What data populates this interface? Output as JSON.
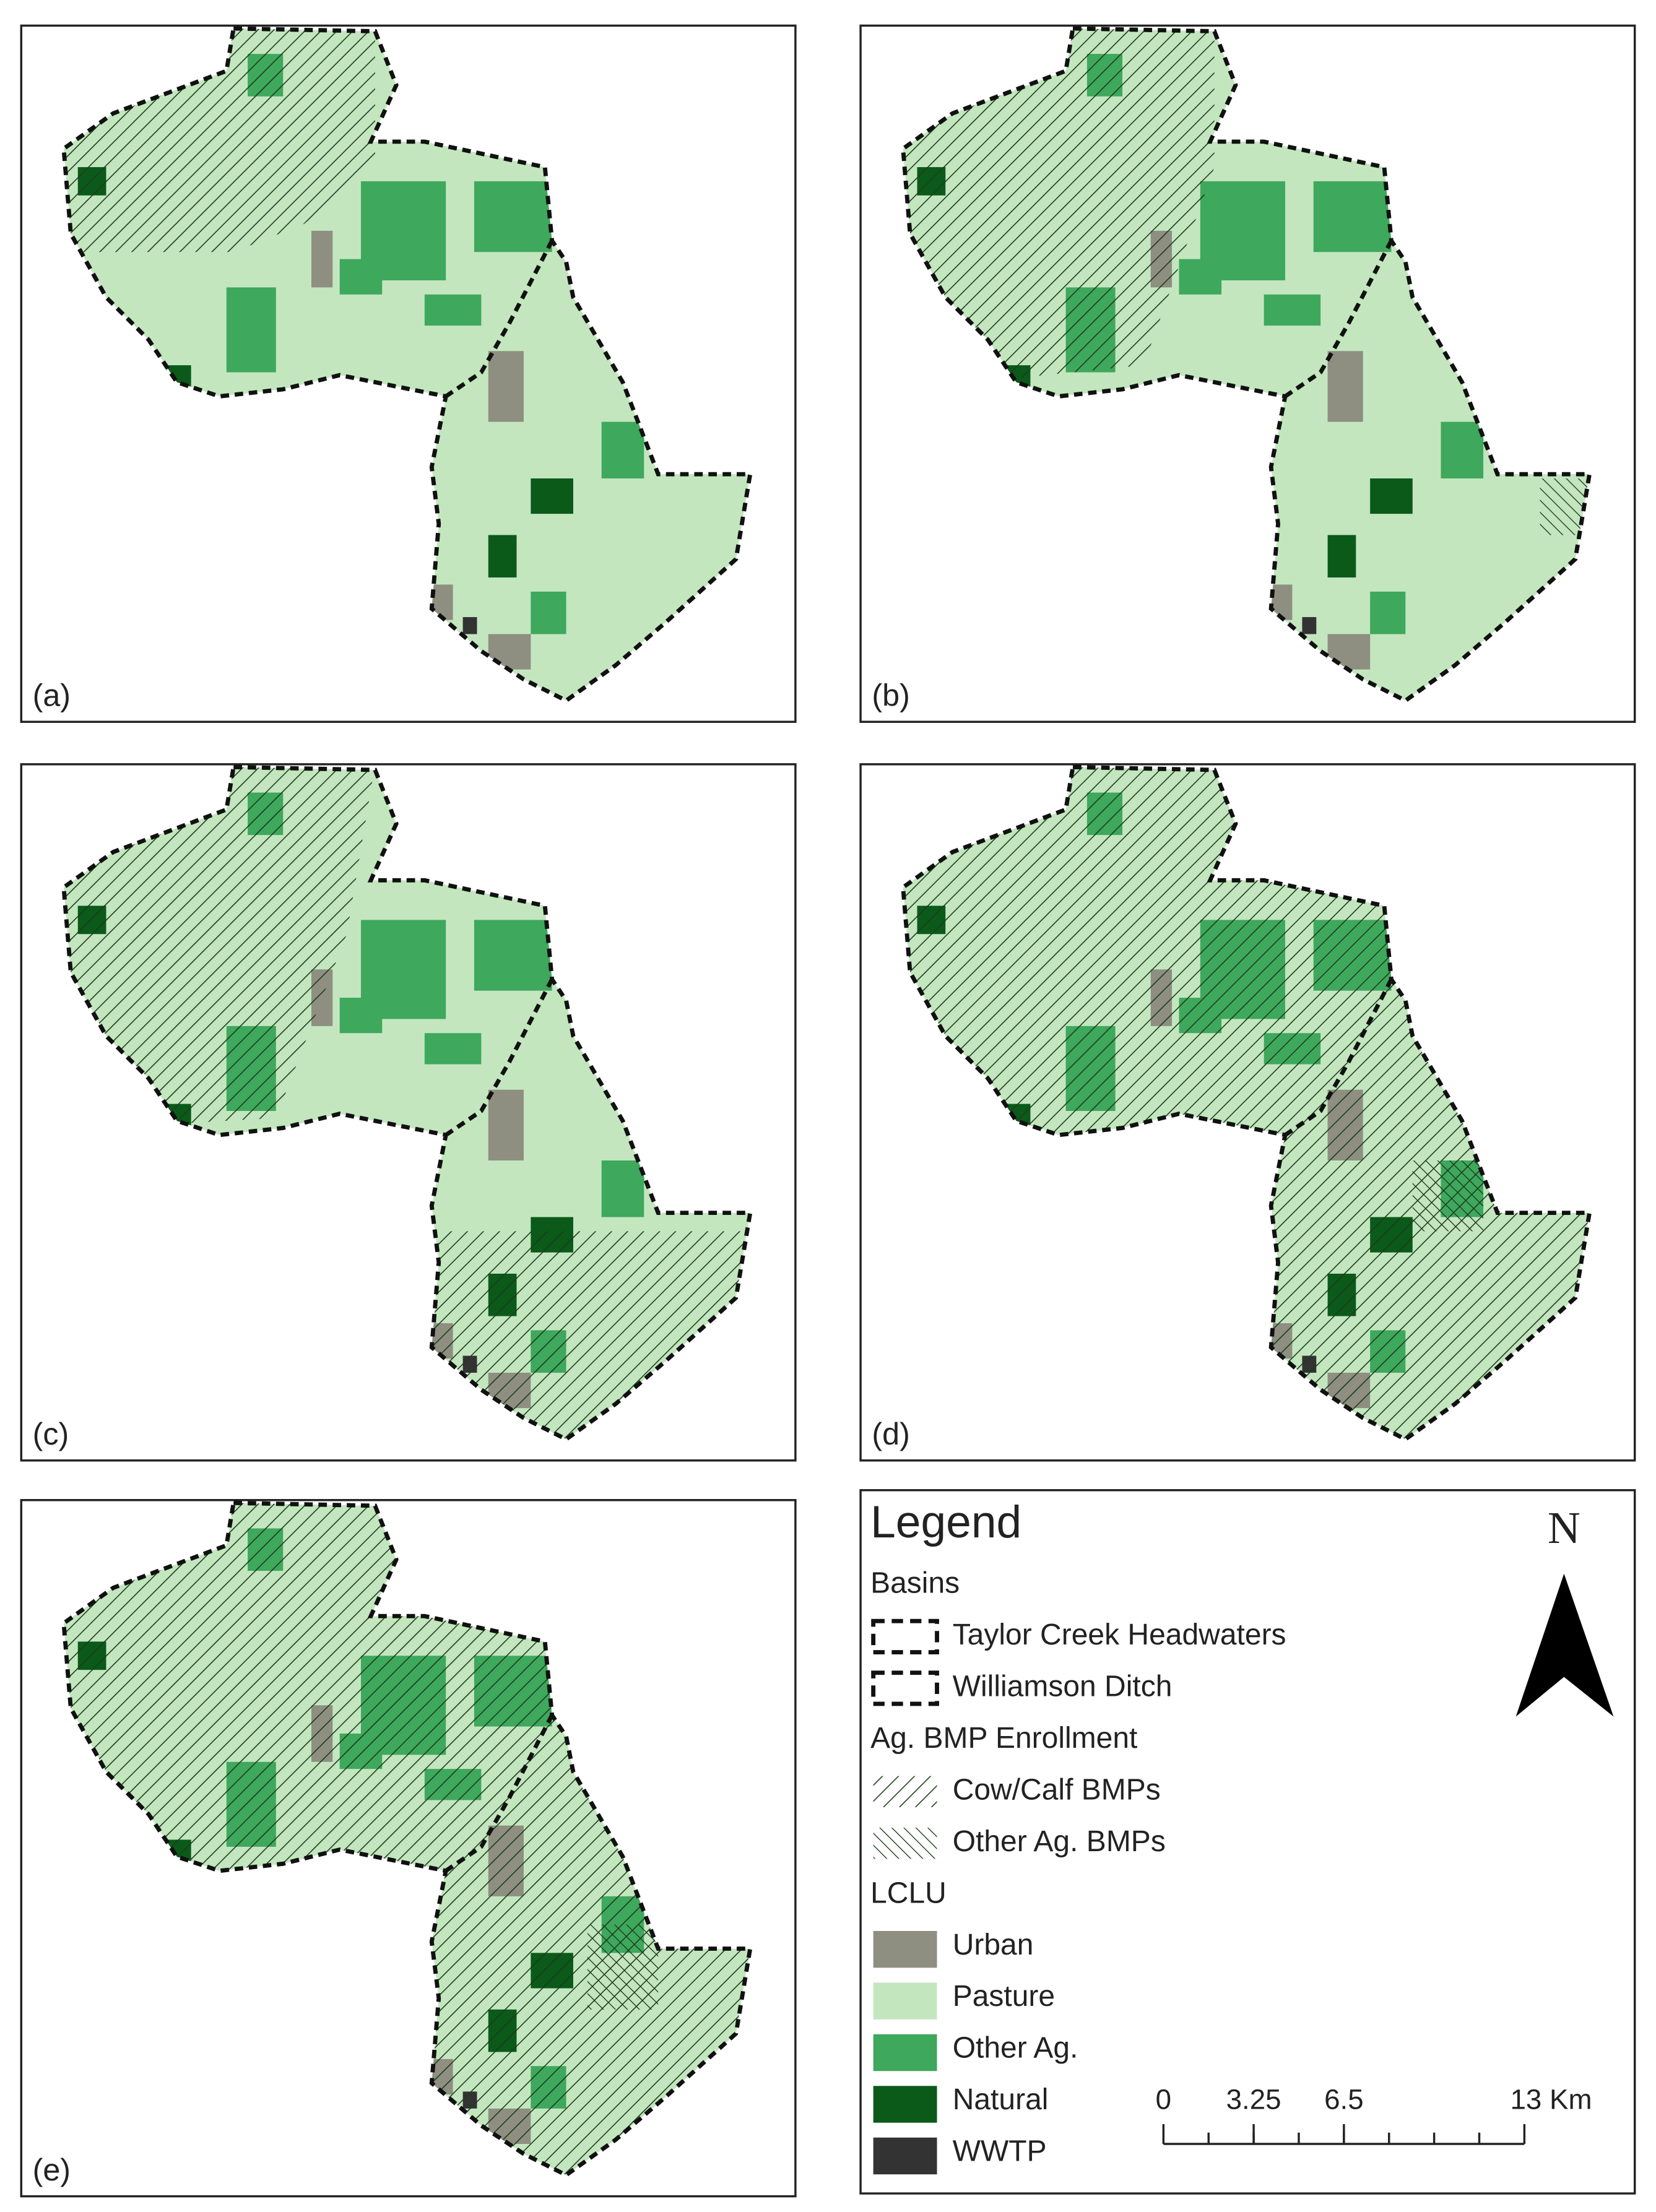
{
  "panels": [
    {
      "label": "(a)"
    },
    {
      "label": "(b)"
    },
    {
      "label": "(c)"
    },
    {
      "label": "(d)"
    },
    {
      "label": "(e)"
    }
  ],
  "legend": {
    "title": "Legend",
    "sections": [
      {
        "heading": "Basins",
        "items": [
          {
            "label": "Taylor Creek Headwaters",
            "symbol": "dashed"
          },
          {
            "label": "Williamson Ditch",
            "symbol": "dashed"
          }
        ]
      },
      {
        "heading": "Ag. BMP Enrollment",
        "items": [
          {
            "label": "Cow/Calf BMPs",
            "symbol": "hatch-cow"
          },
          {
            "label": "Other Ag. BMPs",
            "symbol": "hatch-other"
          }
        ]
      },
      {
        "heading": "LCLU",
        "items": [
          {
            "label": "Urban",
            "symbol": "fill",
            "color": "#8e8f80"
          },
          {
            "label": "Pasture",
            "symbol": "fill",
            "color": "#c3e6bf"
          },
          {
            "label": "Other Ag.",
            "symbol": "fill",
            "color": "#3ea85c"
          },
          {
            "label": "Natural",
            "symbol": "fill",
            "color": "#0b5a1a"
          },
          {
            "label": "WWTP",
            "symbol": "fill",
            "color": "#333333"
          }
        ]
      }
    ]
  },
  "north": "N",
  "scale_bar": {
    "ticks": [
      0,
      3.25,
      6.5,
      {
        "value": 13,
        "label": "13 Km"
      }
    ]
  }
}
